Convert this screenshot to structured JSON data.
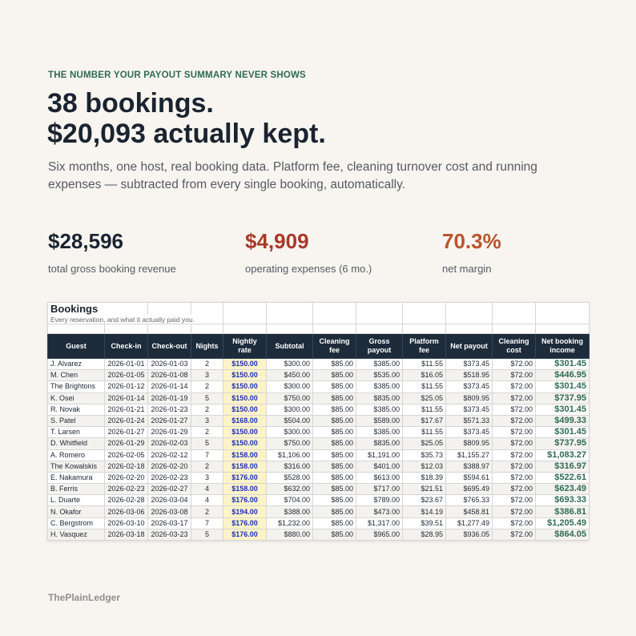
{
  "eyebrow": "THE NUMBER YOUR PAYOUT SUMMARY NEVER SHOWS",
  "headline": {
    "line1": "38 bookings.",
    "line2": "$20,093 actually kept."
  },
  "subtext": "Six months, one host, real booking data. Platform fee, cleaning turnover cost and running expenses — subtracted from every single booking, automatically.",
  "stats": [
    {
      "value": "$28,596",
      "label": "total gross booking revenue",
      "color": "#1a2430"
    },
    {
      "value": "$4,909",
      "label": "operating expenses (6 mo.)",
      "color": "#a8382a"
    },
    {
      "value": "70.3%",
      "label": "net margin",
      "color": "#b8552f"
    }
  ],
  "sheet": {
    "title": "Bookings",
    "description": "Every reservation, and what it actually paid you.",
    "columns": [
      "Guest",
      "Check-in",
      "Check-out",
      "Nights",
      "Nightly rate",
      "Subtotal",
      "Cleaning fee",
      "Gross payout",
      "Platform fee",
      "Net payout",
      "Cleaning cost",
      "Net booking income"
    ],
    "rows": [
      [
        "J. Alvarez",
        "2026-01-01",
        "2026-01-03",
        "2",
        "$150.00",
        "$300.00",
        "$85.00",
        "$385.00",
        "$11.55",
        "$373.45",
        "$72.00",
        "$301.45"
      ],
      [
        "M. Chen",
        "2026-01-05",
        "2026-01-08",
        "3",
        "$150.00",
        "$450.00",
        "$85.00",
        "$535.00",
        "$16.05",
        "$518.95",
        "$72.00",
        "$446.95"
      ],
      [
        "The Brightons",
        "2026-01-12",
        "2026-01-14",
        "2",
        "$150.00",
        "$300.00",
        "$85.00",
        "$385.00",
        "$11.55",
        "$373.45",
        "$72.00",
        "$301.45"
      ],
      [
        "K. Osei",
        "2026-01-14",
        "2026-01-19",
        "5",
        "$150.00",
        "$750.00",
        "$85.00",
        "$835.00",
        "$25.05",
        "$809.95",
        "$72.00",
        "$737.95"
      ],
      [
        "R. Novak",
        "2026-01-21",
        "2026-01-23",
        "2",
        "$150.00",
        "$300.00",
        "$85.00",
        "$385.00",
        "$11.55",
        "$373.45",
        "$72.00",
        "$301.45"
      ],
      [
        "S. Patel",
        "2026-01-24",
        "2026-01-27",
        "3",
        "$168.00",
        "$504.00",
        "$85.00",
        "$589.00",
        "$17.67",
        "$571.33",
        "$72.00",
        "$499.33"
      ],
      [
        "T. Larsen",
        "2026-01-27",
        "2026-01-29",
        "2",
        "$150.00",
        "$300.00",
        "$85.00",
        "$385.00",
        "$11.55",
        "$373.45",
        "$72.00",
        "$301.45"
      ],
      [
        "D. Whitfield",
        "2026-01-29",
        "2026-02-03",
        "5",
        "$150.00",
        "$750.00",
        "$85.00",
        "$835.00",
        "$25.05",
        "$809.95",
        "$72.00",
        "$737.95"
      ],
      [
        "A. Romero",
        "2026-02-05",
        "2026-02-12",
        "7",
        "$158.00",
        "$1,106.00",
        "$85.00",
        "$1,191.00",
        "$35.73",
        "$1,155.27",
        "$72.00",
        "$1,083.27"
      ],
      [
        "The Kowalskis",
        "2026-02-18",
        "2026-02-20",
        "2",
        "$158.00",
        "$316.00",
        "$85.00",
        "$401.00",
        "$12.03",
        "$388.97",
        "$72.00",
        "$316.97"
      ],
      [
        "E. Nakamura",
        "2026-02-20",
        "2026-02-23",
        "3",
        "$176.00",
        "$528.00",
        "$85.00",
        "$613.00",
        "$18.39",
        "$594.61",
        "$72.00",
        "$522.61"
      ],
      [
        "B. Ferris",
        "2026-02-23",
        "2026-02-27",
        "4",
        "$158.00",
        "$632.00",
        "$85.00",
        "$717.00",
        "$21.51",
        "$695.49",
        "$72.00",
        "$623.49"
      ],
      [
        "L. Duarte",
        "2026-02-28",
        "2026-03-04",
        "4",
        "$176.00",
        "$704.00",
        "$85.00",
        "$789.00",
        "$23.67",
        "$765.33",
        "$72.00",
        "$693.33"
      ],
      [
        "N. Okafor",
        "2026-03-06",
        "2026-03-08",
        "2",
        "$194.00",
        "$388.00",
        "$85.00",
        "$473.00",
        "$14.19",
        "$458.81",
        "$72.00",
        "$386.81"
      ],
      [
        "C. Bergstrom",
        "2026-03-10",
        "2026-03-17",
        "7",
        "$176.00",
        "$1,232.00",
        "$85.00",
        "$1,317.00",
        "$39.51",
        "$1,277.49",
        "$72.00",
        "$1,205.49"
      ],
      [
        "H. Vasquez",
        "2026-03-18",
        "2026-03-23",
        "5",
        "$176.00",
        "$880.00",
        "$85.00",
        "$965.00",
        "$28.95",
        "$936.05",
        "$72.00",
        "$864.05"
      ]
    ]
  },
  "brand": "ThePlainLedger",
  "colors": {
    "background": "#f8f5f0",
    "eyebrow": "#2f6b55",
    "header_bg": "#1d2b3b",
    "rate_bg": "#fdf3c8",
    "rate_text": "#1d2fbf",
    "net_income": "#2f6b55"
  }
}
